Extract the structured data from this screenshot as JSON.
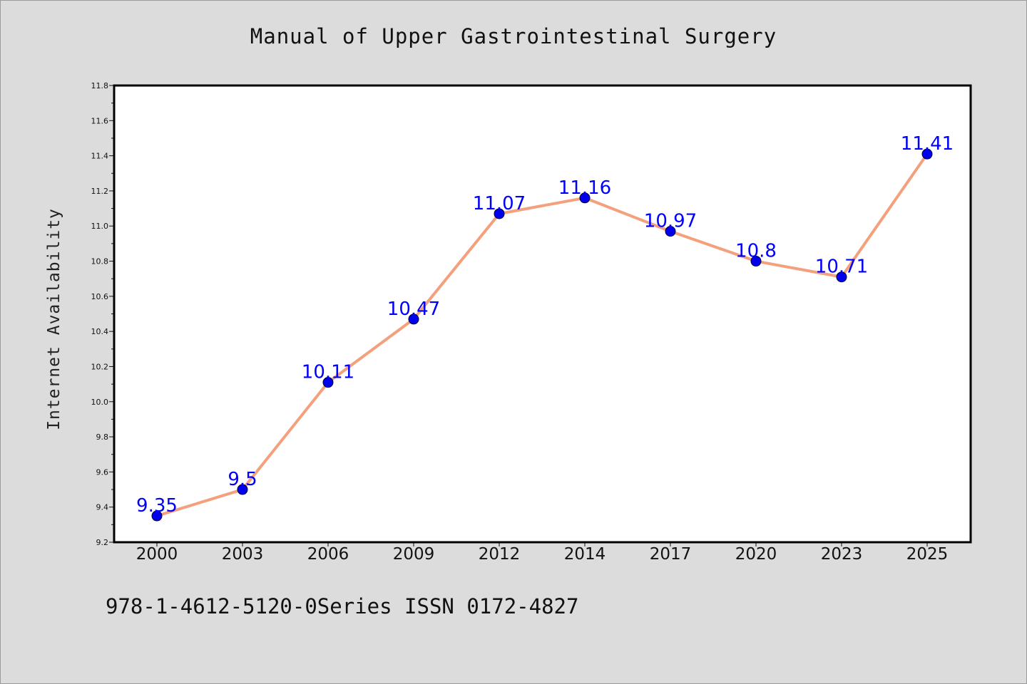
{
  "title": "Manual of Upper Gastrointestinal Surgery",
  "footer": "978-1-4612-5120-0Series ISSN 0172-4827",
  "colors": {
    "background": "#dcdcdc",
    "plot_bg": "#ffffff",
    "line": "#f4a07c",
    "marker": "#0000ee",
    "label": "#0000ff"
  },
  "chart_data": {
    "type": "line",
    "title": "Manual of Upper Gastrointestinal Surgery",
    "xlabel": "",
    "ylabel": "Internet Availability",
    "categories": [
      "2000",
      "2003",
      "2006",
      "2009",
      "2012",
      "2014",
      "2017",
      "2020",
      "2023",
      "2025"
    ],
    "series": [
      {
        "values": [
          9.35,
          9.5,
          10.11,
          10.47,
          11.07,
          11.16,
          10.97,
          10.8,
          10.71,
          11.41
        ],
        "labels": [
          "9.35",
          "9.5",
          "10.11",
          "10.47",
          "11.07",
          "11.16",
          "10.97",
          "10.8",
          "10.71",
          "11.41"
        ]
      }
    ],
    "ylim": [
      9.2,
      11.8
    ],
    "yticks": [
      "9.2",
      "9.4",
      "9.6",
      "9.8",
      "10.0",
      "10.2",
      "10.4",
      "10.6",
      "10.8",
      "11.0",
      "11.2",
      "11.4",
      "11.6",
      "11.8"
    ],
    "grid": false,
    "legend": "none"
  }
}
